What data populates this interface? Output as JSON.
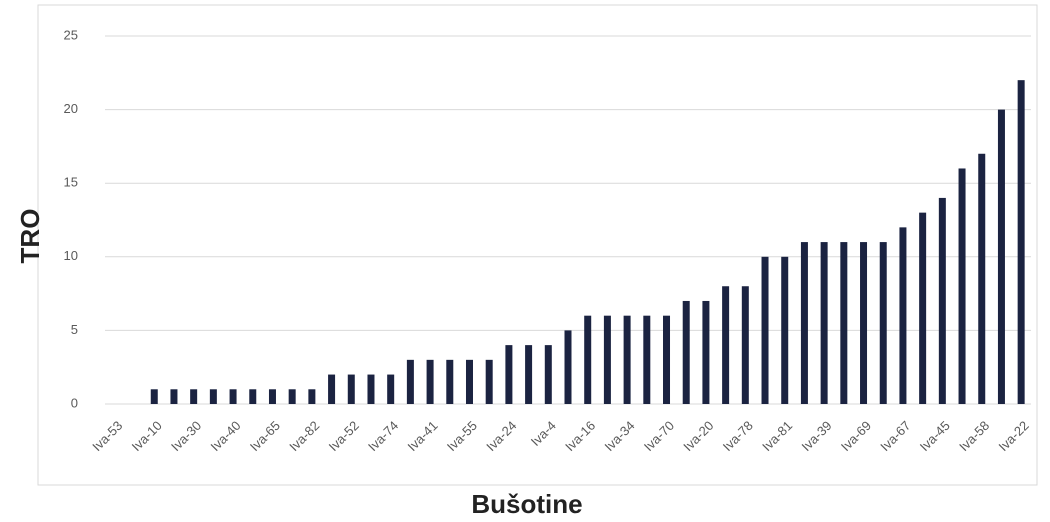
{
  "chart_data": {
    "type": "bar",
    "x_label": "Bušotine",
    "y_label": "TRO",
    "categories": [
      "Iva-53",
      null,
      "Iva-10",
      null,
      "Iva-30",
      null,
      "Iva-40",
      null,
      "Iva-65",
      null,
      "Iva-82",
      null,
      "Iva-52",
      null,
      "Iva-74",
      null,
      "Iva-41",
      null,
      "Iva-55",
      null,
      "Iva-24",
      null,
      "Iva-4",
      null,
      "Iva-16",
      null,
      "Iva-34",
      null,
      "Iva-70",
      null,
      "Iva-20",
      null,
      "Iva-78",
      null,
      "Iva-81",
      null,
      "Iva-39",
      null,
      "Iva-69",
      null,
      "Iva-67",
      null,
      "Iva-45",
      null,
      "Iva-58",
      null,
      "Iva-22"
    ],
    "values": [
      0,
      0,
      1,
      1,
      1,
      1,
      1,
      1,
      1,
      1,
      1,
      2,
      2,
      2,
      2,
      3,
      3,
      3,
      3,
      3,
      4,
      4,
      4,
      5,
      6,
      6,
      6,
      6,
      6,
      7,
      7,
      8,
      8,
      10,
      10,
      11,
      11,
      11,
      11,
      11,
      12,
      13,
      14,
      16,
      17,
      20,
      22
    ],
    "color": "#1b2341",
    "ylim": [
      0,
      25
    ],
    "yticks": [
      0,
      5,
      10,
      15,
      20,
      25
    ],
    "grid": true
  }
}
